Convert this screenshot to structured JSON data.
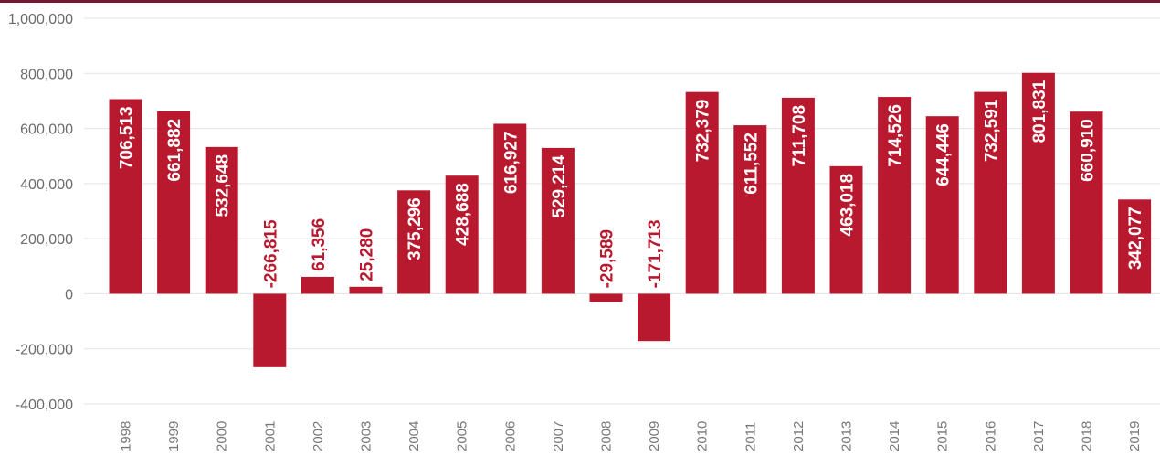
{
  "colors": {
    "top_rule": "#7a1730",
    "bar": "#b8192e",
    "grid": "#e3e3e3",
    "label_inside": "#ffffff",
    "label_outside": "#b8192e"
  },
  "chart_data": {
    "type": "bar",
    "title": "",
    "xlabel": "",
    "ylabel": "",
    "ylim": [
      -400000,
      1000000
    ],
    "y_ticks": [
      -400000,
      -200000,
      0,
      200000,
      400000,
      600000,
      800000,
      1000000
    ],
    "y_tick_labels": [
      "-400,000",
      "-200,000",
      "0",
      "200,000",
      "400,000",
      "600,000",
      "800,000",
      "1,000,000"
    ],
    "grid": true,
    "categories": [
      "1998",
      "1999",
      "2000",
      "2001",
      "2002",
      "2003",
      "2004",
      "2005",
      "2006",
      "2007",
      "2008",
      "2009",
      "2010",
      "2011",
      "2012",
      "2013",
      "2014",
      "2015",
      "2016",
      "2017",
      "2018",
      "2019"
    ],
    "values": [
      706513,
      661882,
      532648,
      -266815,
      61356,
      25280,
      375296,
      428688,
      616927,
      529214,
      -29589,
      -171713,
      732379,
      611552,
      711708,
      463018,
      714526,
      644446,
      732591,
      801831,
      660910,
      342077
    ],
    "data_labels": [
      "706,513",
      "661,882",
      "532,648",
      "-266,815",
      "61,356",
      "25,280",
      "375,296",
      "428,688",
      "616,927",
      "529,214",
      "-29,589",
      "-171,713",
      "732,379",
      "611,552",
      "711,708",
      "463,018",
      "714,526",
      "644,446",
      "732,591",
      "801,831",
      "660,910",
      "342,077"
    ]
  }
}
